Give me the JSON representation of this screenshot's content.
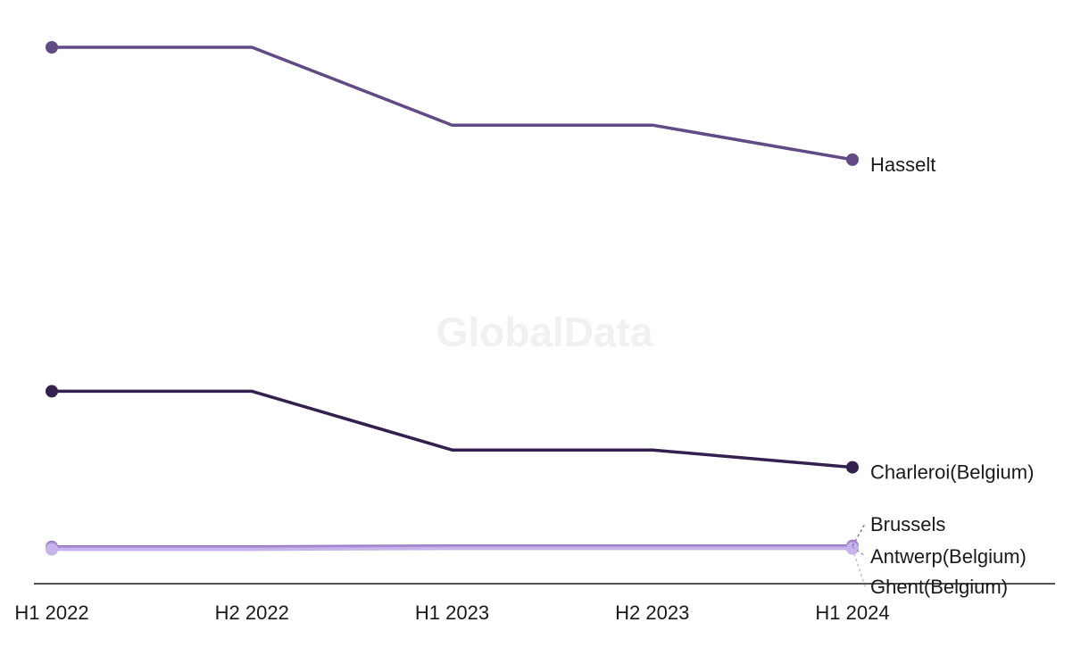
{
  "watermark": "GlobalData",
  "chart_data": {
    "type": "line",
    "title": "",
    "xlabel": "",
    "ylabel": "",
    "categories": [
      "H1 2022",
      "H2 2022",
      "H1 2023",
      "H2 2023",
      "H1 2024"
    ],
    "ylim": [
      0,
      300
    ],
    "grid": false,
    "legend": "direct labels at line ends",
    "series": [
      {
        "name": "Hasselt",
        "values": [
          300,
          300,
          255,
          255,
          235
        ],
        "color": "#614a85"
      },
      {
        "name": "Charleroi(Belgium)",
        "values": [
          101,
          101,
          67,
          67,
          57
        ],
        "color": "#33204f"
      },
      {
        "name": "Brussels",
        "values": [
          11,
          11,
          11.5,
          11.5,
          11.5
        ],
        "color": "#8a6cb8"
      },
      {
        "name": "Antwerp(Belgium)",
        "values": [
          10.5,
          10.5,
          11,
          11,
          11
        ],
        "color": "#a98fd6"
      },
      {
        "name": "Ghent(Belgium)",
        "values": [
          9.5,
          9.5,
          10,
          10,
          10
        ],
        "color": "#c7b4ea"
      }
    ]
  }
}
